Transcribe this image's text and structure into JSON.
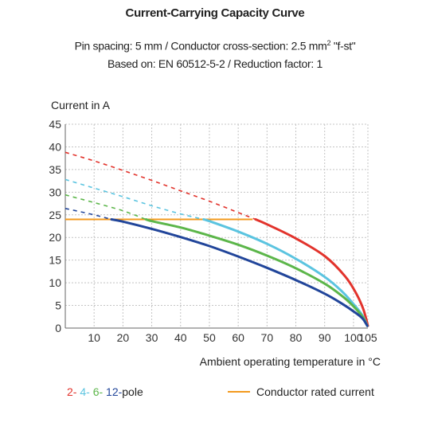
{
  "title": "Current-Carrying Capacity Curve",
  "subtitle1_pre": "Pin spacing: 5 mm / Conductor cross-section: 2.5 mm",
  "subtitle1_sup": "2",
  "subtitle1_post": " \"f-st\"",
  "subtitle2": "Based on: EN 60512-5-2 / Reduction factor: 1",
  "legend": {
    "poles": [
      {
        "label": "2-",
        "color": "#e2332c"
      },
      {
        "label": "4-",
        "color": "#5bc4e0"
      },
      {
        "label": "6-",
        "color": "#5cb64a"
      },
      {
        "label": "12-",
        "color": "#21459a"
      }
    ],
    "pole_suffix": "pole",
    "rated_label": "Conductor rated current",
    "rated_color": "#f39a1e"
  },
  "chart_data": {
    "type": "line",
    "ylabel": "Current in A",
    "xlabel": "Ambient operating temperature in °C",
    "xlim": [
      0,
      105
    ],
    "ylim": [
      0,
      45
    ],
    "x_ticks": [
      10,
      20,
      30,
      40,
      50,
      60,
      70,
      80,
      90,
      100,
      105
    ],
    "y_ticks": [
      0,
      5,
      10,
      15,
      20,
      25,
      30,
      35,
      40,
      45
    ],
    "grid": true,
    "rated_current": {
      "value": 24,
      "x": [
        0,
        65
      ],
      "color": "#f39a1e"
    },
    "series": [
      {
        "name": "2",
        "color": "#e2332c",
        "dashed": [
          [
            0,
            38.8
          ],
          [
            10,
            36.9
          ],
          [
            20,
            34.8
          ],
          [
            30,
            32.6
          ],
          [
            40,
            30.3
          ],
          [
            50,
            28.0
          ],
          [
            60,
            25.5
          ],
          [
            66,
            24.0
          ]
        ],
        "solid": [
          [
            66,
            24.0
          ],
          [
            70,
            22.9
          ],
          [
            80,
            19.8
          ],
          [
            90,
            15.9
          ],
          [
            97,
            11.5
          ],
          [
            101,
            7.6
          ],
          [
            103.5,
            4.0
          ],
          [
            105,
            0.5
          ]
        ]
      },
      {
        "name": "4",
        "color": "#5bc4e0",
        "dashed": [
          [
            0,
            32.8
          ],
          [
            10,
            30.9
          ],
          [
            20,
            29.0
          ],
          [
            30,
            27.0
          ],
          [
            40,
            25.2
          ],
          [
            48,
            24.0
          ]
        ],
        "solid": [
          [
            48,
            24.0
          ],
          [
            50,
            23.6
          ],
          [
            60,
            21.3
          ],
          [
            70,
            18.6
          ],
          [
            80,
            15.3
          ],
          [
            90,
            11.3
          ],
          [
            96,
            8.1
          ],
          [
            100,
            5.3
          ],
          [
            103,
            2.9
          ],
          [
            104.8,
            0.5
          ]
        ]
      },
      {
        "name": "6",
        "color": "#5cb64a",
        "dashed": [
          [
            0,
            29.4
          ],
          [
            10,
            27.7
          ],
          [
            20,
            25.9
          ],
          [
            28,
            24.0
          ]
        ],
        "solid": [
          [
            28,
            24.0
          ],
          [
            30,
            23.6
          ],
          [
            40,
            22.2
          ],
          [
            50,
            20.4
          ],
          [
            60,
            18.4
          ],
          [
            70,
            16.0
          ],
          [
            80,
            13.2
          ],
          [
            90,
            9.8
          ],
          [
            96,
            7.1
          ],
          [
            100,
            4.8
          ],
          [
            103,
            2.6
          ],
          [
            104.8,
            0.5
          ]
        ]
      },
      {
        "name": "12",
        "color": "#21459a",
        "dashed": [
          [
            0,
            26.4
          ],
          [
            10,
            25.0
          ],
          [
            16,
            24.0
          ]
        ],
        "solid": [
          [
            16,
            24.0
          ],
          [
            20,
            23.5
          ],
          [
            30,
            21.9
          ],
          [
            40,
            20.1
          ],
          [
            50,
            18.1
          ],
          [
            60,
            15.8
          ],
          [
            70,
            13.3
          ],
          [
            80,
            10.6
          ],
          [
            90,
            7.6
          ],
          [
            96,
            5.4
          ],
          [
            100,
            3.7
          ],
          [
            103,
            2.2
          ],
          [
            104.8,
            0.5
          ]
        ]
      }
    ]
  }
}
